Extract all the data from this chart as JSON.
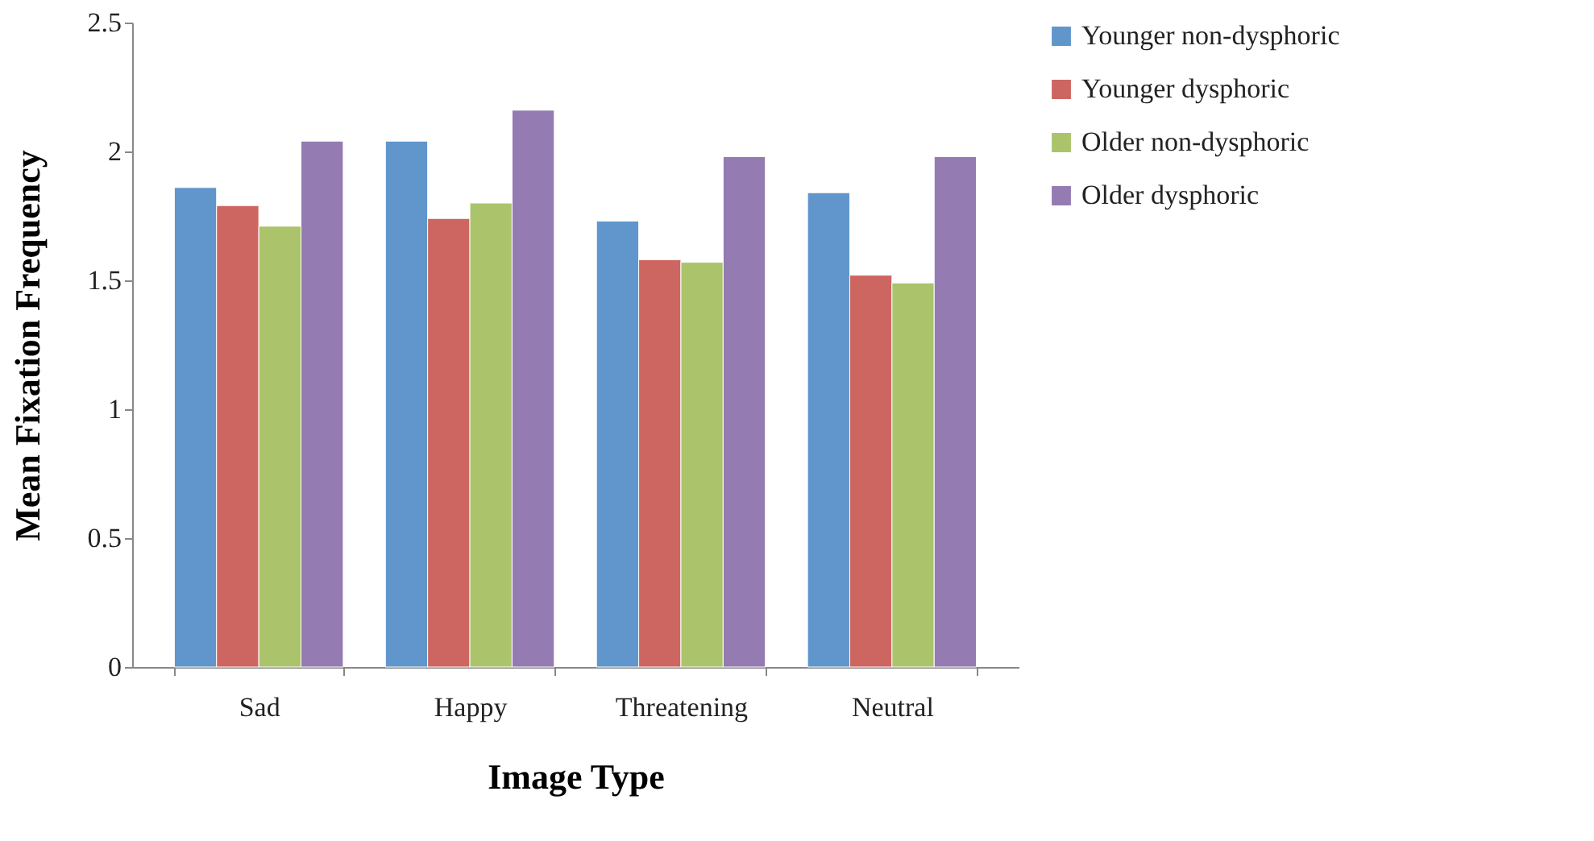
{
  "chart_data": {
    "type": "bar",
    "xlabel": "Image Type",
    "ylabel": "Mean Fixation Frequency",
    "categories": [
      "Sad",
      "Happy",
      "Threatening",
      "Neutral"
    ],
    "series": [
      {
        "name": "Younger non-dysphoric",
        "color": "#6096cb",
        "values": [
          1.86,
          2.04,
          1.73,
          1.84
        ]
      },
      {
        "name": "Younger dysphoric",
        "color": "#cd6660",
        "values": [
          1.79,
          1.74,
          1.58,
          1.52
        ]
      },
      {
        "name": "Older non-dysphoric",
        "color": "#abc46c",
        "values": [
          1.71,
          1.8,
          1.57,
          1.49
        ]
      },
      {
        "name": "Older dysphoric",
        "color": "#947bb2",
        "values": [
          2.04,
          2.16,
          1.98,
          1.98
        ]
      }
    ],
    "ylim": [
      0,
      2.5
    ],
    "yticks": [
      0,
      0.5,
      1,
      1.5,
      2,
      2.5
    ],
    "grid": false,
    "legend": "top right"
  }
}
